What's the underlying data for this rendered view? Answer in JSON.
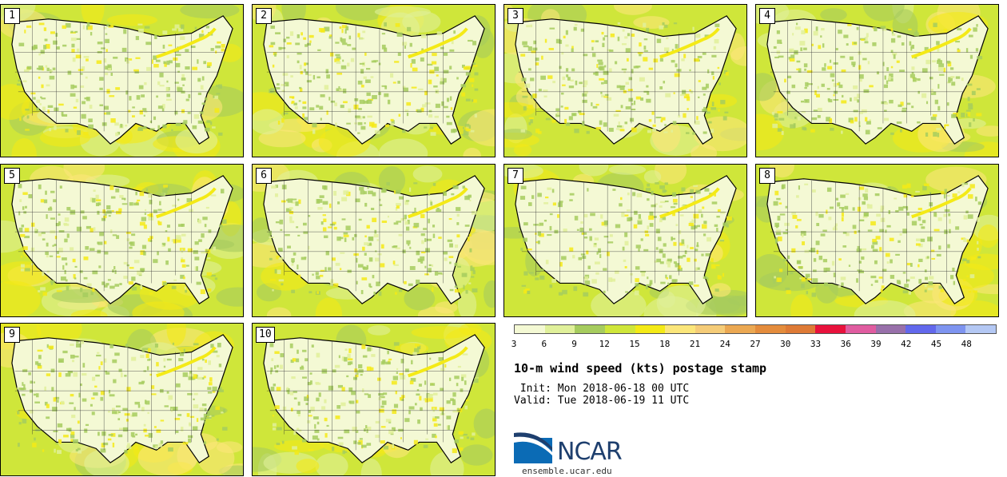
{
  "panels": [
    {
      "label": "1"
    },
    {
      "label": "2"
    },
    {
      "label": "3"
    },
    {
      "label": "4"
    },
    {
      "label": "5"
    },
    {
      "label": "6"
    },
    {
      "label": "7"
    },
    {
      "label": "8"
    },
    {
      "label": "9"
    },
    {
      "label": "10"
    }
  ],
  "colorbar": {
    "colors": [
      "#f4f9d4",
      "#e0f09a",
      "#a6cc5e",
      "#cfe63a",
      "#f4ea16",
      "#fbe67a",
      "#f5cc78",
      "#eba852",
      "#e48c3c",
      "#de7a36",
      "#e8123c",
      "#e05ca0",
      "#9870aa",
      "#6268ec",
      "#7e94f0",
      "#b4c8f4"
    ],
    "ticks": [
      "3",
      "6",
      "9",
      "12",
      "15",
      "18",
      "21",
      "24",
      "27",
      "30",
      "33",
      "36",
      "39",
      "42",
      "45",
      "48"
    ]
  },
  "title": "10-m wind speed (kts) postage stamp",
  "init": " Init: Mon 2018-06-18 00 UTC",
  "valid": "Valid: Tue 2018-06-19 11 UTC",
  "logo": {
    "text": "NCAR",
    "url": "ensemble.ucar.edu",
    "color_blue": "#0b6bb5",
    "color_navy": "#1e3f6e"
  }
}
